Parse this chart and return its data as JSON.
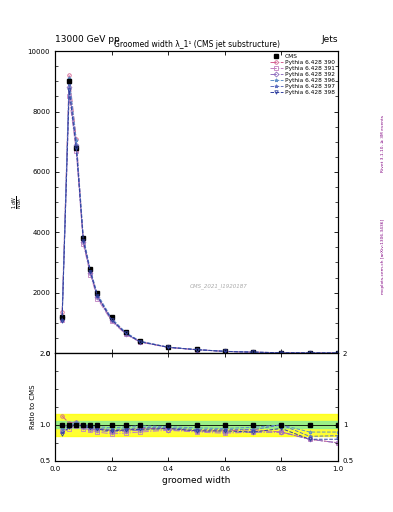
{
  "title_top": "13000 GeV pp",
  "title_right": "Jets",
  "plot_title": "Groomed width λ_1¹ (CMS jet substructure)",
  "xlabel": "groomed width",
  "right_label": "Rivet 3.1.10, ≥ 3M events",
  "right_label2": "mcplots.cern.ch [arXiv:1306.3436]",
  "watermark": "CMS_2021_I1920187",
  "cms_label": "CMS",
  "legend_entries": [
    "CMS",
    "Pythia 6.428 390",
    "Pythia 6.428 391",
    "Pythia 6.428 392",
    "Pythia 6.428 396",
    "Pythia 6.428 397",
    "Pythia 6.428 398"
  ],
  "xdata": [
    0.025,
    0.05,
    0.075,
    0.1,
    0.125,
    0.15,
    0.2,
    0.25,
    0.3,
    0.4,
    0.5,
    0.6,
    0.7,
    0.8,
    0.9,
    1.0
  ],
  "cms_data": [
    1200,
    9000,
    6800,
    3800,
    2800,
    2000,
    1200,
    700,
    400,
    200,
    120,
    60,
    30,
    10,
    5,
    2
  ],
  "py390": [
    1350,
    9200,
    7100,
    3750,
    2700,
    1900,
    1100,
    650,
    380,
    190,
    110,
    55,
    28,
    9,
    4,
    1.5
  ],
  "py391": [
    1100,
    8500,
    6700,
    3600,
    2600,
    1800,
    1050,
    620,
    360,
    185,
    108,
    53,
    27,
    9,
    4,
    1.5
  ],
  "py392": [
    1200,
    8800,
    6900,
    3680,
    2650,
    1850,
    1080,
    640,
    370,
    187,
    109,
    54,
    27,
    9,
    4,
    1.5
  ],
  "py396": [
    1150,
    9100,
    7050,
    3850,
    2750,
    1950,
    1150,
    680,
    395,
    195,
    115,
    57,
    29,
    10,
    4.5,
    1.8
  ],
  "py397": [
    1100,
    8900,
    6900,
    3780,
    2720,
    1900,
    1120,
    660,
    385,
    192,
    112,
    56,
    28,
    10,
    4.2,
    1.7
  ],
  "py398": [
    1050,
    8700,
    6800,
    3720,
    2680,
    1880,
    1100,
    650,
    375,
    190,
    110,
    55,
    27,
    9.5,
    4.0,
    1.6
  ],
  "colors": {
    "cms": "#000000",
    "py390": "#d46090",
    "py391": "#c080c0",
    "py392": "#9070c0",
    "py396": "#6090c8",
    "py397": "#6070c0",
    "py398": "#3040a0"
  },
  "ylim_main": [
    0,
    10000
  ],
  "ylim_ratio": [
    0.5,
    2.0
  ],
  "xlim": [
    0.0,
    1.0
  ]
}
